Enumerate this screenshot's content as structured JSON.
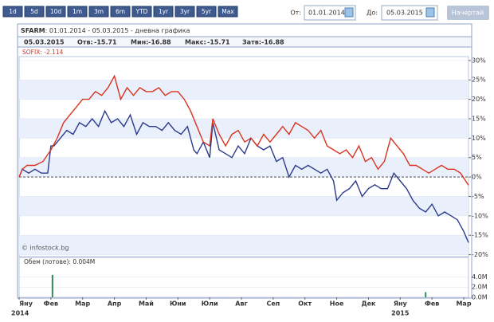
{
  "toolbar": {
    "ranges": [
      "1d",
      "5d",
      "10d",
      "1m",
      "3m",
      "6m",
      "YTD",
      "1yr",
      "3yr",
      "5yr",
      "Max"
    ],
    "from_label": "От:",
    "from": "01.01.2014",
    "to_label": "До:",
    "to": "05.03.2015",
    "button": "Начертай"
  },
  "info": {
    "date": "05.03.2015",
    "open_label": "Отв:",
    "open": -15.71,
    "low_label": "Мин:",
    "low": -16.88,
    "high_label": "Макс:",
    "high": -15.71,
    "close_label": "Затв:",
    "close": -16.88
  },
  "chart_data": [
    {
      "type": "line",
      "subtitle": ": 01.01.2014 - 05.03.2015 - дневна графика",
      "watermark": "© infostock.bg",
      "xlim": [
        0,
        14.15
      ],
      "ylim": [
        -20.5,
        31
      ],
      "grid": true,
      "zero_line": true,
      "xticks": [
        {
          "value": 0,
          "label": "Яну"
        },
        {
          "value": 1,
          "label": "Фев"
        },
        {
          "value": 2,
          "label": "Мар"
        },
        {
          "value": 3,
          "label": "Апр"
        },
        {
          "value": 4,
          "label": "Май"
        },
        {
          "value": 5,
          "label": "Юни"
        },
        {
          "value": 6,
          "label": "Юли"
        },
        {
          "value": 7,
          "label": "Авг"
        },
        {
          "value": 8,
          "label": "Сеп"
        },
        {
          "value": 9,
          "label": "Окт"
        },
        {
          "value": 10,
          "label": "Ное"
        },
        {
          "value": 11,
          "label": "Дек"
        },
        {
          "value": 12,
          "label": "Яну"
        },
        {
          "value": 13,
          "label": "Фев"
        },
        {
          "value": 14,
          "label": "Мар"
        }
      ],
      "year_labels": [
        {
          "value": 0,
          "label": "2014"
        },
        {
          "value": 12,
          "label": "2015"
        }
      ],
      "yticks": [
        {
          "value": 30,
          "label": "30%"
        },
        {
          "value": 25,
          "label": "25%"
        },
        {
          "value": 20,
          "label": "20%"
        },
        {
          "value": 15,
          "label": "15%"
        },
        {
          "value": 10,
          "label": "10%"
        },
        {
          "value": 5,
          "label": "5%"
        },
        {
          "value": 0,
          "label": "0%"
        },
        {
          "value": -5,
          "label": "-5%"
        },
        {
          "value": -10,
          "label": "-10%"
        },
        {
          "value": -15,
          "label": "-15%"
        },
        {
          "value": -20,
          "label": "-20%"
        }
      ],
      "series": [
        {
          "name": "SFARM",
          "color": "#2b3a8c",
          "x": [
            0,
            0.1,
            0.3,
            0.5,
            0.7,
            0.9,
            1.0,
            1.1,
            1.3,
            1.5,
            1.7,
            1.9,
            2.1,
            2.3,
            2.5,
            2.7,
            2.9,
            3.1,
            3.3,
            3.5,
            3.7,
            3.9,
            4.1,
            4.3,
            4.5,
            4.7,
            4.9,
            5.1,
            5.3,
            5.5,
            5.6,
            5.8,
            6.0,
            6.1,
            6.3,
            6.5,
            6.7,
            6.9,
            7.1,
            7.3,
            7.5,
            7.7,
            7.9,
            8.1,
            8.3,
            8.5,
            8.7,
            8.9,
            9.1,
            9.3,
            9.5,
            9.7,
            9.9,
            10.0,
            10.2,
            10.4,
            10.6,
            10.8,
            11.0,
            11.2,
            11.4,
            11.6,
            11.8,
            12.0,
            12.2,
            12.4,
            12.6,
            12.8,
            13.0,
            13.2,
            13.4,
            13.6,
            13.8,
            14.0,
            14.15
          ],
          "values": [
            0,
            2,
            1,
            2,
            1,
            1,
            8,
            8,
            10,
            12,
            11,
            14,
            13,
            15,
            13,
            17,
            14,
            15,
            13,
            16,
            11,
            14,
            13,
            13,
            12,
            14,
            12,
            11,
            13,
            7,
            6,
            9,
            5,
            14,
            7,
            6,
            5,
            8,
            6,
            10,
            8,
            7,
            8,
            4,
            5,
            0,
            3,
            2,
            3,
            2,
            1,
            2,
            -1,
            -6,
            -4,
            -3,
            -1,
            -5,
            -3,
            -2,
            -3,
            -3,
            1,
            -1,
            -3,
            -6,
            -8,
            -9,
            -7,
            -10,
            -9,
            -10,
            -11,
            -14,
            -16.88
          ]
        },
        {
          "name": "SOFIX: -2.114",
          "color": "#d9331f",
          "x": [
            0,
            0.1,
            0.25,
            0.5,
            0.75,
            1.0,
            1.2,
            1.4,
            1.6,
            1.8,
            2.0,
            2.2,
            2.4,
            2.6,
            2.8,
            3.0,
            3.2,
            3.4,
            3.6,
            3.8,
            4.0,
            4.2,
            4.4,
            4.6,
            4.8,
            5.0,
            5.2,
            5.4,
            5.6,
            5.8,
            6.0,
            6.1,
            6.3,
            6.5,
            6.7,
            6.9,
            7.1,
            7.3,
            7.5,
            7.7,
            7.9,
            8.1,
            8.3,
            8.5,
            8.7,
            8.9,
            9.1,
            9.3,
            9.5,
            9.7,
            9.9,
            10.1,
            10.3,
            10.5,
            10.7,
            10.9,
            11.1,
            11.3,
            11.5,
            11.7,
            11.9,
            12.1,
            12.3,
            12.5,
            12.7,
            12.9,
            13.1,
            13.3,
            13.5,
            13.7,
            13.9,
            14.1,
            14.15
          ],
          "values": [
            0,
            2,
            3,
            3,
            4,
            7,
            10,
            14,
            16,
            18,
            20,
            20,
            22,
            21,
            23,
            26,
            20,
            23,
            21,
            23,
            22,
            22,
            23,
            21,
            22,
            22,
            20,
            17,
            13,
            9,
            8,
            15,
            11,
            8,
            11,
            12,
            9,
            10,
            8,
            11,
            9,
            11,
            13,
            11,
            14,
            13,
            12,
            10,
            12,
            8,
            7,
            6,
            7,
            5,
            8,
            4,
            5,
            2,
            4,
            10,
            8,
            6,
            3,
            3,
            2,
            1,
            2,
            3,
            2,
            2,
            1,
            -1.5,
            -2.114
          ]
        }
      ]
    },
    {
      "type": "bar",
      "title": "Обем (лотове): 0.004M",
      "xlim": [
        0,
        14.15
      ],
      "ylim": [
        0,
        7.5
      ],
      "yticks": [
        {
          "value": 4,
          "label": "4.0M"
        },
        {
          "value": 2,
          "label": "2.0M"
        },
        {
          "value": 0,
          "label": "0.0M"
        }
      ],
      "color": "#2e8b57",
      "x": [
        1.05,
        12.8
      ],
      "values": [
        4.4,
        1.0
      ]
    }
  ]
}
